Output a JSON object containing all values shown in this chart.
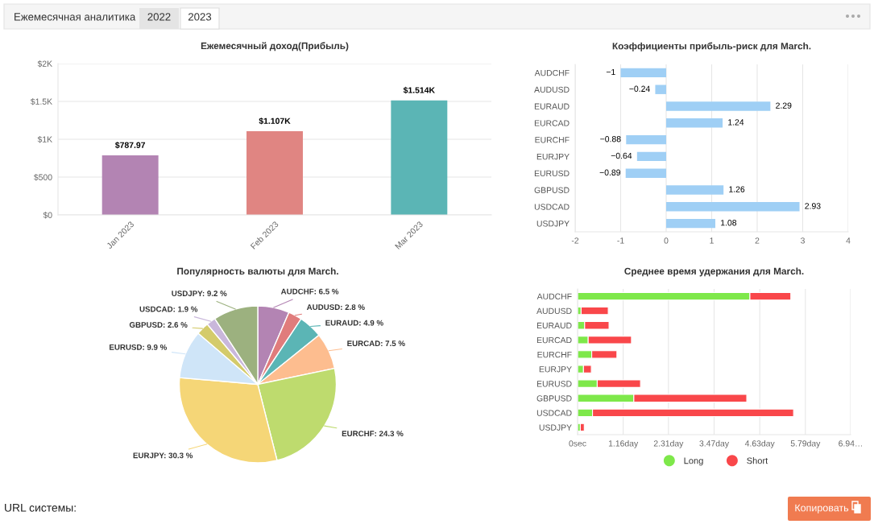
{
  "chart_data": [
    {
      "type": "other",
      "annotations": [
        "Ежемесячная аналитика",
        "2022",
        "2023",
        "URL системы:",
        "Копировать"
      ]
    },
    {
      "type": "bar",
      "title": "Ежемесячный доход(Прибыль)",
      "categories": [
        "Jan 2023",
        "Feb 2023",
        "Mar 2023"
      ],
      "values": [
        787.97,
        1107,
        1514
      ],
      "colors": [
        "#b384b3",
        "#e08582",
        "#5bb5b5"
      ],
      "value_labels": [
        "$787.97",
        "$1.107K",
        "$1.514K"
      ],
      "ylim": [
        0,
        2000
      ],
      "yticks": [
        {
          "value": 0,
          "label": "$0"
        },
        {
          "value": 500,
          "label": "$500"
        },
        {
          "value": 1000,
          "label": "$1K"
        },
        {
          "value": 1500,
          "label": "$1.5K"
        },
        {
          "value": 2000,
          "label": "$2K"
        }
      ],
      "grid": "y"
    },
    {
      "type": "bar",
      "orientation": "horizontal",
      "title": "Коэффициенты прибыль-риск для March.",
      "categories": [
        "AUDCHF",
        "AUDUSD",
        "EURAUD",
        "EURCAD",
        "EURCHF",
        "EURJPY",
        "EURUSD",
        "GBPUSD",
        "USDCAD",
        "USDJPY"
      ],
      "values": [
        -1,
        -0.24,
        2.29,
        1.24,
        -0.88,
        -0.64,
        -0.89,
        1.26,
        2.93,
        1.08
      ],
      "color": "#9fcff5",
      "value_labels": [
        "−1",
        "−0.24",
        "2.29",
        "1.24",
        "−0.88",
        "−0.64",
        "−0.89",
        "1.26",
        "2.93",
        "1.08"
      ],
      "xlim": [
        -2,
        4
      ],
      "xticks": [
        -2,
        -1,
        0,
        1,
        2,
        3,
        4
      ],
      "grid": "x"
    },
    {
      "type": "bar",
      "orientation": "horizontal",
      "stacked": true,
      "title": "Среднее время удержания для March.",
      "categories": [
        "AUDCHF",
        "AUDUSD",
        "EURAUD",
        "EURCAD",
        "EURCHF",
        "EURJPY",
        "EURUSD",
        "GBPUSD",
        "USDCAD",
        "USDJPY"
      ],
      "series": [
        {
          "name": "Long",
          "color": "#7ee84a",
          "values": [
            4.38,
            0.09,
            0.18,
            0.27,
            0.36,
            0.15,
            0.5,
            1.43,
            0.38,
            0.07
          ]
        },
        {
          "name": "Short",
          "color": "#f9474a",
          "values": [
            1.04,
            0.69,
            0.62,
            1.1,
            0.64,
            0.2,
            1.1,
            2.87,
            5.11,
            0.1
          ]
        }
      ],
      "xlim": [
        0,
        6.94
      ],
      "xticks": [
        {
          "value": 0,
          "label": "0sec"
        },
        {
          "value": 1.16,
          "label": "1.16day"
        },
        {
          "value": 2.31,
          "label": "2.31day"
        },
        {
          "value": 3.47,
          "label": "3.47day"
        },
        {
          "value": 4.63,
          "label": "4.63day"
        },
        {
          "value": 5.79,
          "label": "5.79day"
        },
        {
          "value": 6.94,
          "label": "6.94…"
        }
      ],
      "grid": "x",
      "legend": "bottom"
    },
    {
      "type": "pie",
      "title": "Популярность валюты для March.",
      "categories": [
        "AUDCHF",
        "AUDUSD",
        "EURAUD",
        "EURCAD",
        "EURCHF",
        "EURJPY",
        "EURUSD",
        "GBPUSD",
        "USDCAD",
        "USDJPY"
      ],
      "values": [
        6.5,
        2.8,
        4.9,
        7.5,
        24.3,
        30.3,
        9.9,
        2.6,
        1.9,
        9.2
      ],
      "colors": [
        "#b384b3",
        "#e07c7c",
        "#5bb5b5",
        "#fdbd8f",
        "#bedb6e",
        "#f5d677",
        "#cfe5f8",
        "#d4cb6b",
        "#c9b7db",
        "#9cb17f"
      ],
      "value_labels": [
        "6.5 %",
        "2.8 %",
        "4.9 %",
        "7.5 %",
        "24.3 %",
        "30.3 %",
        "9.9 %",
        "2.6 %",
        "1.9 %",
        "9.2 %"
      ]
    }
  ]
}
